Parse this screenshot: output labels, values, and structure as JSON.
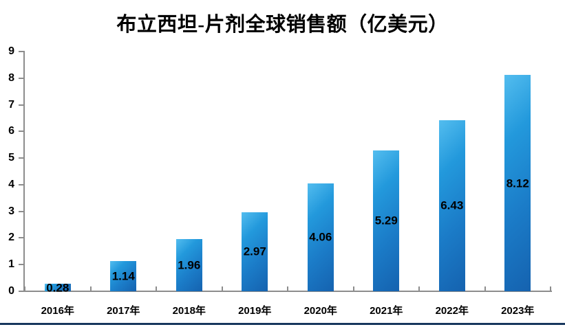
{
  "title": "布立西坦-片剂全球销售额（亿美元）",
  "chart_data": {
    "type": "bar",
    "title": "布立西坦-片剂全球销售额（亿美元）",
    "categories": [
      "2016年",
      "2017年",
      "2018年",
      "2019年",
      "2020年",
      "2021年",
      "2022年",
      "2023年"
    ],
    "values": [
      0.28,
      1.14,
      1.96,
      2.97,
      4.06,
      5.29,
      6.43,
      8.12
    ],
    "data_labels": [
      "0.28",
      "1.14",
      "1.96",
      "2.97",
      "4.06",
      "5.29",
      "6.43",
      "8.12"
    ],
    "data_label_position": "center",
    "xlabel": "",
    "ylabel": "",
    "ylim": [
      0,
      9
    ],
    "y_ticks": [
      0,
      1,
      2,
      3,
      4,
      5,
      6,
      7,
      8,
      9
    ],
    "grid": false,
    "legend": "none",
    "colors": {
      "bar_gradient_light": "#53BDEF",
      "bar_gradient_upper": "#2399DC",
      "bar_gradient_lower": "#1B7CC8",
      "bar_gradient_dark": "#1562AF",
      "axis": "#8C8C8C",
      "text": "#000000",
      "bottom_rule": "#17365D",
      "background": "#FFFFFF"
    }
  }
}
